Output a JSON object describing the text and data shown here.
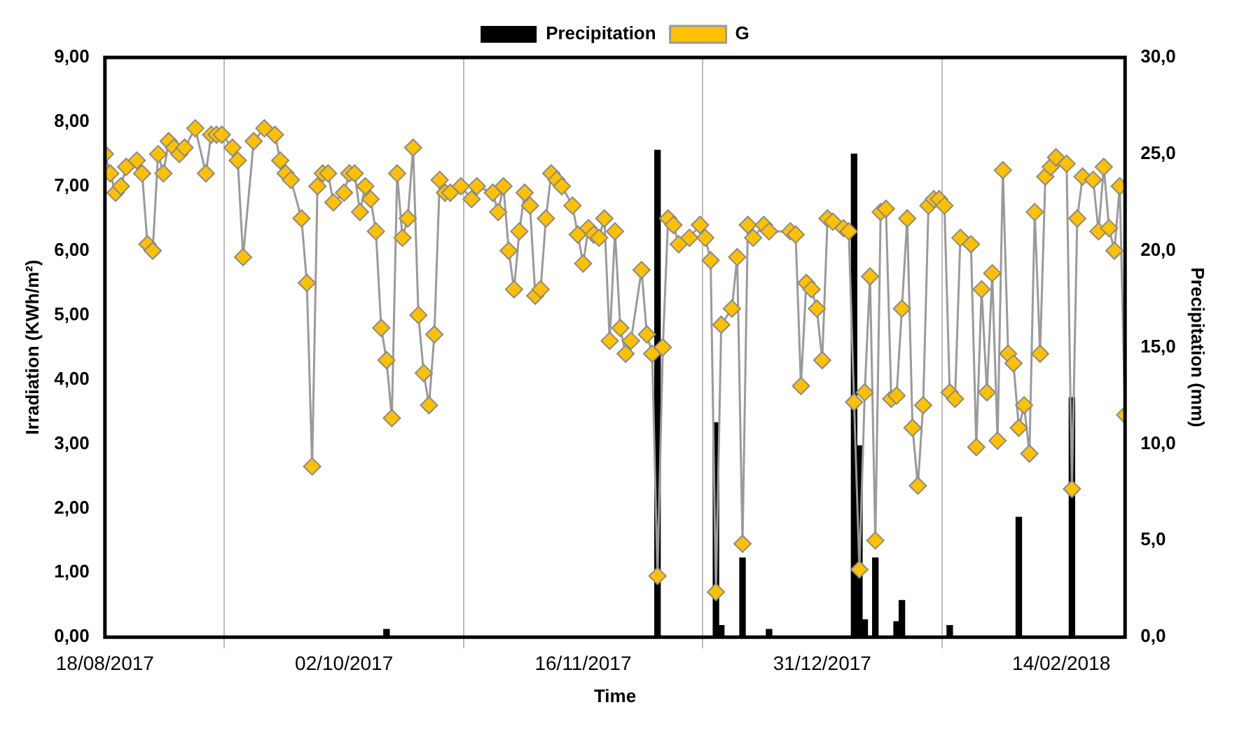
{
  "chart_data": {
    "type": "line",
    "xlabel": "Time",
    "ylabel": "Irradiation (KWh/m²)",
    "y2label": "Precipitation (mm)",
    "legend": "top",
    "grid": "x",
    "marker": "diamond",
    "line_style": "solid",
    "xlim": [
      "2017-08-18",
      "2018-02-26"
    ],
    "xticks": [
      {
        "value": "2017-08-18",
        "label": "18/08/2017"
      },
      {
        "value": "2017-10-02",
        "label": "02/10/2017"
      },
      {
        "value": "2017-11-16",
        "label": "16/11/2017"
      },
      {
        "value": "2017-12-31",
        "label": "31/12/2017"
      },
      {
        "value": "2018-02-14",
        "label": "14/02/2018"
      }
    ],
    "ylim": [
      0,
      9
    ],
    "yticks": [
      {
        "value": 0,
        "label": "0,00"
      },
      {
        "value": 1,
        "label": "1,00"
      },
      {
        "value": 2,
        "label": "2,00"
      },
      {
        "value": 3,
        "label": "3,00"
      },
      {
        "value": 4,
        "label": "4,00"
      },
      {
        "value": 5,
        "label": "5,00"
      },
      {
        "value": 6,
        "label": "6,00"
      },
      {
        "value": 7,
        "label": "7,00"
      },
      {
        "value": 8,
        "label": "8,00"
      },
      {
        "value": 9,
        "label": "9,00"
      }
    ],
    "y2lim": [
      0,
      30
    ],
    "y2ticks": [
      {
        "value": 0,
        "label": "0,0"
      },
      {
        "value": 5,
        "label": "5,0"
      },
      {
        "value": 10,
        "label": "10,0"
      },
      {
        "value": 15,
        "label": "15,0"
      },
      {
        "value": 20,
        "label": "20,0"
      },
      {
        "value": 25,
        "label": "25,0"
      },
      {
        "value": 30,
        "label": "30,0"
      }
    ],
    "series": [
      {
        "name": "Precipitation",
        "type": "bar",
        "axis": "y2",
        "color": "#000000",
        "x": [
          "2017-10-10",
          "2017-11-30",
          "2017-12-11",
          "2017-12-12",
          "2017-12-16",
          "2017-12-21",
          "2018-01-06",
          "2018-01-07",
          "2018-01-08",
          "2018-01-10",
          "2018-01-14",
          "2018-01-15",
          "2018-01-24",
          "2018-02-06",
          "2018-02-16"
        ],
        "values": [
          0.4,
          25.2,
          11.1,
          0.6,
          4.1,
          0.4,
          25.0,
          9.9,
          0.9,
          4.1,
          0.8,
          1.9,
          0.6,
          6.2,
          12.4
        ]
      },
      {
        "name": "G",
        "color": "#ffc000",
        "x": [
          "2017-08-18",
          "2017-08-19",
          "2017-08-20",
          "2017-08-21",
          "2017-08-22",
          "2017-08-24",
          "2017-08-25",
          "2017-08-26",
          "2017-08-27",
          "2017-08-28",
          "2017-08-29",
          "2017-08-30",
          "2017-08-31",
          "2017-09-01",
          "2017-09-02",
          "2017-09-04",
          "2017-09-06",
          "2017-09-07",
          "2017-09-08",
          "2017-09-09",
          "2017-09-11",
          "2017-09-12",
          "2017-09-13",
          "2017-09-15",
          "2017-09-17",
          "2017-09-19",
          "2017-09-20",
          "2017-09-21",
          "2017-09-22",
          "2017-09-24",
          "2017-09-25",
          "2017-09-26",
          "2017-09-27",
          "2017-09-28",
          "2017-09-29",
          "2017-09-30",
          "2017-10-02",
          "2017-10-03",
          "2017-10-04",
          "2017-10-05",
          "2017-10-06",
          "2017-10-07",
          "2017-10-08",
          "2017-10-09",
          "2017-10-10",
          "2017-10-11",
          "2017-10-12",
          "2017-10-13",
          "2017-10-14",
          "2017-10-15",
          "2017-10-16",
          "2017-10-17",
          "2017-10-18",
          "2017-10-19",
          "2017-10-20",
          "2017-10-21",
          "2017-10-22",
          "2017-10-24",
          "2017-10-26",
          "2017-10-27",
          "2017-10-30",
          "2017-10-31",
          "2017-11-01",
          "2017-11-02",
          "2017-11-03",
          "2017-11-04",
          "2017-11-05",
          "2017-11-06",
          "2017-11-07",
          "2017-11-08",
          "2017-11-09",
          "2017-11-10",
          "2017-11-11",
          "2017-11-12",
          "2017-11-14",
          "2017-11-15",
          "2017-11-16",
          "2017-11-17",
          "2017-11-18",
          "2017-11-19",
          "2017-11-20",
          "2017-11-21",
          "2017-11-22",
          "2017-11-23",
          "2017-11-24",
          "2017-11-25",
          "2017-11-27",
          "2017-11-28",
          "2017-11-29",
          "2017-11-30",
          "2017-12-01",
          "2017-12-02",
          "2017-12-03",
          "2017-12-04",
          "2017-12-06",
          "2017-12-08",
          "2017-12-09",
          "2017-12-10",
          "2017-12-11",
          "2017-12-12",
          "2017-12-14",
          "2017-12-15",
          "2017-12-16",
          "2017-12-17",
          "2017-12-18",
          "2017-12-20",
          "2017-12-21",
          "2017-12-25",
          "2017-12-26",
          "2017-12-27",
          "2017-12-28",
          "2017-12-29",
          "2017-12-30",
          "2017-12-31",
          "2018-01-01",
          "2018-01-02",
          "2018-01-04",
          "2018-01-05",
          "2018-01-06",
          "2018-01-07",
          "2018-01-08",
          "2018-01-09",
          "2018-01-10",
          "2018-01-11",
          "2018-01-12",
          "2018-01-13",
          "2018-01-14",
          "2018-01-15",
          "2018-01-16",
          "2018-01-17",
          "2018-01-18",
          "2018-01-19",
          "2018-01-20",
          "2018-01-21",
          "2018-01-22",
          "2018-01-23",
          "2018-01-24",
          "2018-01-25",
          "2018-01-26",
          "2018-01-28",
          "2018-01-29",
          "2018-01-30",
          "2018-01-31",
          "2018-02-01",
          "2018-02-02",
          "2018-02-03",
          "2018-02-04",
          "2018-02-05",
          "2018-02-06",
          "2018-02-07",
          "2018-02-08",
          "2018-02-09",
          "2018-02-10",
          "2018-02-11",
          "2018-02-12",
          "2018-02-13",
          "2018-02-15",
          "2018-02-16",
          "2018-02-17",
          "2018-02-18",
          "2018-02-20",
          "2018-02-21",
          "2018-02-22",
          "2018-02-23",
          "2018-02-24",
          "2018-02-25",
          "2018-02-26"
        ],
        "values": [
          7.5,
          7.2,
          6.9,
          7.0,
          7.3,
          7.4,
          7.2,
          6.1,
          6.0,
          7.5,
          7.2,
          7.7,
          7.6,
          7.5,
          7.6,
          7.9,
          7.2,
          7.8,
          7.8,
          7.8,
          7.6,
          7.4,
          5.9,
          7.7,
          7.9,
          7.8,
          7.4,
          7.2,
          7.1,
          6.5,
          5.5,
          2.65,
          7.0,
          7.2,
          7.2,
          6.75,
          6.9,
          7.2,
          7.2,
          6.6,
          7.0,
          6.8,
          6.3,
          4.8,
          4.3,
          3.4,
          7.2,
          6.2,
          6.5,
          7.6,
          5.0,
          4.1,
          3.6,
          4.7,
          7.1,
          6.9,
          6.9,
          7.0,
          6.8,
          7.0,
          6.9,
          6.6,
          7.0,
          6.0,
          5.4,
          6.3,
          6.9,
          6.7,
          5.3,
          5.4,
          6.5,
          7.2,
          7.1,
          7.0,
          6.7,
          6.25,
          5.8,
          6.35,
          6.25,
          6.2,
          6.5,
          4.6,
          6.3,
          4.8,
          4.4,
          4.6,
          5.7,
          4.7,
          4.4,
          0.95,
          4.5,
          6.5,
          6.4,
          6.1,
          6.2,
          6.4,
          6.2,
          5.85,
          0.7,
          4.85,
          5.1,
          5.9,
          1.45,
          6.4,
          6.2,
          6.4,
          6.3,
          6.3,
          6.25,
          3.9,
          5.5,
          5.4,
          5.1,
          4.3,
          6.5,
          6.45,
          6.35,
          6.3,
          3.65,
          1.05,
          3.8,
          5.6,
          1.5,
          6.6,
          6.65,
          3.7,
          3.75,
          5.1,
          6.5,
          3.25,
          2.35,
          3.6,
          6.7,
          6.8,
          6.8,
          6.7,
          3.8,
          3.7,
          6.2,
          6.1,
          2.95,
          5.4,
          3.8,
          5.65,
          3.05,
          7.25,
          4.4,
          4.25,
          3.25,
          3.6,
          2.85,
          6.6,
          4.4,
          7.15,
          7.3,
          7.45,
          7.35,
          2.3,
          6.5,
          7.15,
          7.1,
          6.3,
          7.3,
          6.35,
          6.0,
          7.0,
          3.45
        ]
      }
    ]
  }
}
